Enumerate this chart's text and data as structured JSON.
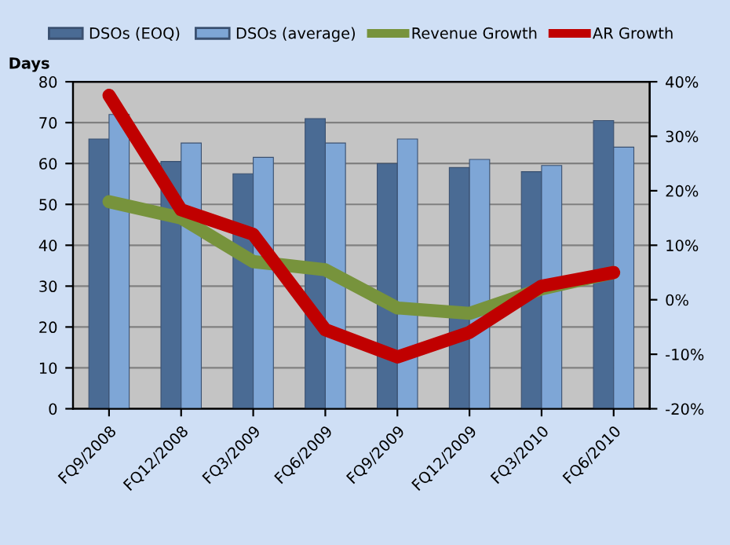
{
  "chart_data": {
    "type": "bar",
    "ylabel": "Days",
    "categories": [
      "FQ9/2008",
      "FQ12/2008",
      "FQ3/2009",
      "FQ6/2009",
      "FQ9/2009",
      "FQ12/2009",
      "FQ3/2010",
      "FQ6/2010"
    ],
    "series": [
      {
        "name": "DSOs (EOQ)",
        "color": "#4a6b94",
        "values": [
          66,
          60.5,
          57.5,
          71,
          60,
          59,
          58,
          70.5
        ]
      },
      {
        "name": "DSOs (average)",
        "color": "#7ea6d6",
        "values": [
          72,
          65,
          61.5,
          65,
          66,
          61,
          59.5,
          64
        ]
      },
      {
        "name": "Revenue Growth",
        "type": "line",
        "axis": "y2",
        "color": "#77933c",
        "values": [
          18,
          15,
          7,
          5.5,
          -1.5,
          -2.5,
          2,
          5
        ]
      },
      {
        "name": "AR Growth",
        "type": "line",
        "axis": "y2",
        "color": "#c00000",
        "values": [
          37.5,
          16.5,
          12,
          -5.5,
          -10.5,
          -6,
          2.5,
          5
        ]
      }
    ],
    "ylim": [
      0,
      80
    ],
    "yticks": [
      0,
      10,
      20,
      30,
      40,
      50,
      60,
      70,
      80
    ],
    "y2lim": [
      -20,
      40
    ],
    "y2ticks": [
      {
        "value": -20,
        "label": "-20%"
      },
      {
        "value": -10,
        "label": "-10%"
      },
      {
        "value": 0,
        "label": "0%"
      },
      {
        "value": 10,
        "label": "10%"
      },
      {
        "value": 20,
        "label": "20%"
      },
      {
        "value": 30,
        "label": "30%"
      },
      {
        "value": 40,
        "label": "40%"
      }
    ],
    "grid": "y",
    "legend": "top",
    "line_style": "solid",
    "marker": "none"
  }
}
